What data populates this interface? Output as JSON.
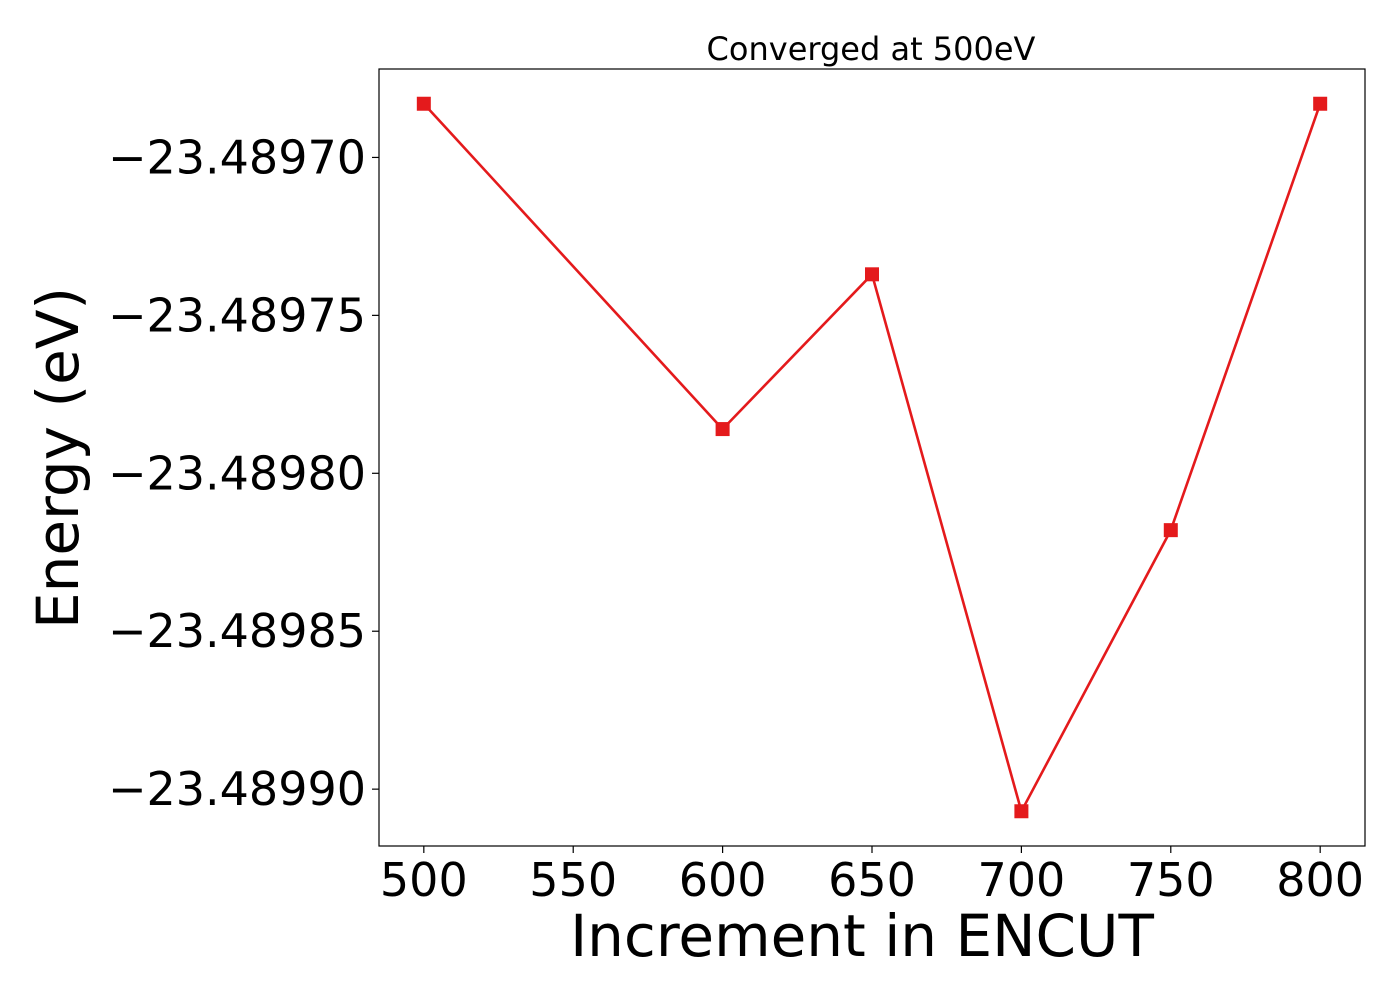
{
  "chart_data": {
    "type": "line",
    "title": "Converged at 500eV",
    "xlabel": "Increment in ENCUT",
    "ylabel": "Energy (eV)",
    "x": [
      500,
      600,
      650,
      700,
      750,
      800
    ],
    "series": [
      {
        "values": [
          -23.489683,
          -23.489786,
          -23.489737,
          -23.489907,
          -23.489818,
          -23.489683
        ],
        "color": "#e41a1c",
        "marker": "square"
      }
    ],
    "xticks": [
      500,
      550,
      600,
      650,
      700,
      750,
      800
    ],
    "xtick_labels": [
      "500",
      "550",
      "600",
      "650",
      "700",
      "750",
      "800"
    ],
    "yticks": [
      -23.4897,
      -23.48975,
      -23.4898,
      -23.48985,
      -23.4899
    ],
    "ytick_labels": [
      "−23.48970",
      "−23.48975",
      "−23.48980",
      "−23.48985",
      "−23.48990"
    ],
    "xlim": [
      485,
      815
    ],
    "ylim": [
      -23.489918,
      -23.489672
    ],
    "grid": false,
    "legend": false
  }
}
